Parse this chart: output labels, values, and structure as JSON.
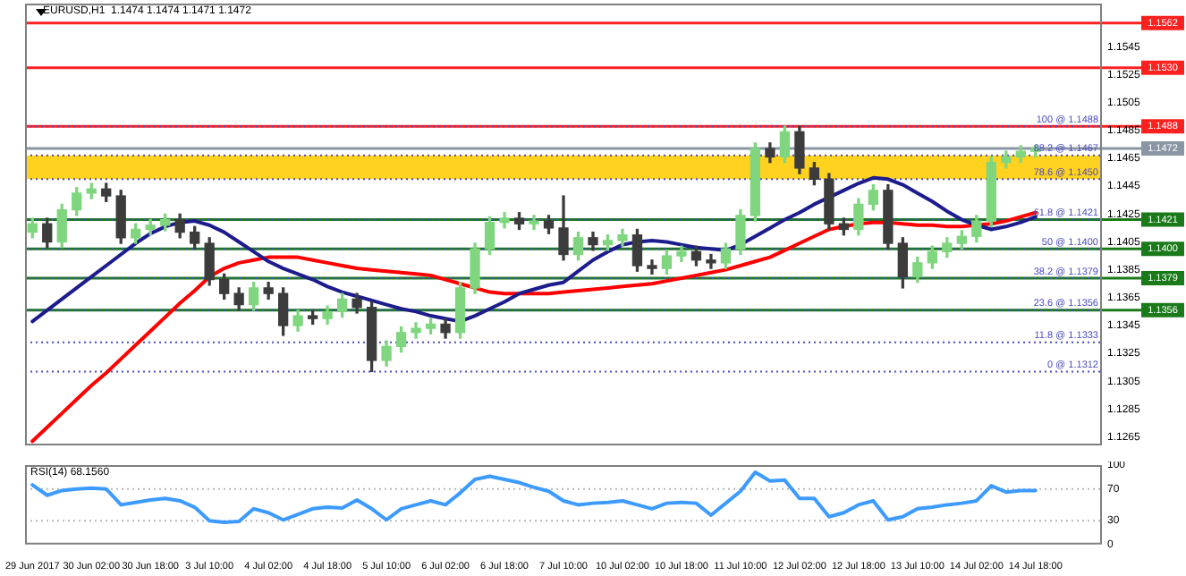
{
  "chart_data": [
    {
      "type": "candlestick",
      "title": "EURUSD,H1  1.1474 1.1474 1.1471 1.1472",
      "categories": [
        null,
        null,
        null,
        null,
        null,
        null,
        null,
        null,
        null,
        null,
        null,
        null,
        null,
        null,
        null,
        null,
        null,
        null,
        null,
        null,
        null,
        null,
        null,
        null,
        null,
        null,
        null,
        null,
        null,
        null,
        null,
        null,
        null,
        null,
        null,
        null,
        null,
        null,
        null,
        null,
        null,
        null,
        null,
        null,
        null,
        null,
        null,
        null,
        null,
        null,
        null,
        null,
        null,
        null,
        null,
        null,
        null,
        null,
        null,
        null,
        null,
        null,
        null,
        null,
        null,
        null,
        null,
        null,
        null
      ],
      "ohlc": [
        [
          1.1412,
          1.1422,
          1.1408,
          1.1418
        ],
        [
          1.1418,
          1.1422,
          1.1401,
          1.1405
        ],
        [
          1.1405,
          1.1432,
          1.1401,
          1.1428
        ],
        [
          1.1428,
          1.1444,
          1.1424,
          1.144
        ],
        [
          1.144,
          1.1447,
          1.1436,
          1.1443
        ],
        [
          1.1443,
          1.1447,
          1.1434,
          1.1438
        ],
        [
          1.1438,
          1.1442,
          1.1404,
          1.1408
        ],
        [
          1.1408,
          1.1418,
          1.1404,
          1.1414
        ],
        [
          1.1414,
          1.1421,
          1.141,
          1.1417
        ],
        [
          1.1417,
          1.1425,
          1.1413,
          1.1421
        ],
        [
          1.1421,
          1.1425,
          1.1408,
          1.1412
        ],
        [
          1.1412,
          1.1416,
          1.14,
          1.1404
        ],
        [
          1.1404,
          1.1408,
          1.1374,
          1.1378
        ],
        [
          1.1378,
          1.1382,
          1.1364,
          1.1368
        ],
        [
          1.1368,
          1.1372,
          1.1356,
          1.136
        ],
        [
          1.136,
          1.1376,
          1.1356,
          1.1372
        ],
        [
          1.1372,
          1.1376,
          1.1364,
          1.1368
        ],
        [
          1.1368,
          1.1372,
          1.1338,
          1.1345
        ],
        [
          1.1345,
          1.1356,
          1.1341,
          1.1352
        ],
        [
          1.1352,
          1.1356,
          1.1346,
          1.135
        ],
        [
          1.135,
          1.1359,
          1.1346,
          1.1355
        ],
        [
          1.1355,
          1.1368,
          1.1351,
          1.1364
        ],
        [
          1.1364,
          1.1368,
          1.1354,
          1.1358
        ],
        [
          1.1358,
          1.1362,
          1.1312,
          1.132
        ],
        [
          1.132,
          1.1334,
          1.1316,
          1.133
        ],
        [
          1.133,
          1.1344,
          1.1326,
          1.134
        ],
        [
          1.134,
          1.1347,
          1.1336,
          1.1343
        ],
        [
          1.1343,
          1.135,
          1.1339,
          1.1346
        ],
        [
          1.1346,
          1.135,
          1.1336,
          1.134
        ],
        [
          1.134,
          1.1376,
          1.1336,
          1.1372
        ],
        [
          1.1372,
          1.1404,
          1.1368,
          1.14
        ],
        [
          1.14,
          1.1423,
          1.1396,
          1.1419
        ],
        [
          1.1419,
          1.1426,
          1.1415,
          1.1422
        ],
        [
          1.1422,
          1.1426,
          1.1414,
          1.1418
        ],
        [
          1.1418,
          1.1424,
          1.1414,
          1.142
        ],
        [
          1.142,
          1.1424,
          1.1411,
          1.1415
        ],
        [
          1.1415,
          1.1438,
          1.1392,
          1.1396
        ],
        [
          1.1396,
          1.1412,
          1.1392,
          1.1408
        ],
        [
          1.1408,
          1.1412,
          1.1399,
          1.1403
        ],
        [
          1.1403,
          1.141,
          1.1399,
          1.1406
        ],
        [
          1.1406,
          1.1414,
          1.1402,
          1.141
        ],
        [
          1.141,
          1.1414,
          1.1384,
          1.1388
        ],
        [
          1.1388,
          1.1392,
          1.1382,
          1.1386
        ],
        [
          1.1386,
          1.1399,
          1.1382,
          1.1395
        ],
        [
          1.1395,
          1.1402,
          1.1391,
          1.1398
        ],
        [
          1.1398,
          1.1402,
          1.1388,
          1.1392
        ],
        [
          1.1392,
          1.1396,
          1.1386,
          1.139
        ],
        [
          1.139,
          1.1404,
          1.1386,
          1.14
        ],
        [
          1.14,
          1.1428,
          1.1396,
          1.1424
        ],
        [
          1.1424,
          1.1476,
          1.142,
          1.1472
        ],
        [
          1.1472,
          1.1476,
          1.1462,
          1.1466
        ],
        [
          1.1466,
          1.1488,
          1.1462,
          1.1484
        ],
        [
          1.1484,
          1.1488,
          1.1454,
          1.1458
        ],
        [
          1.1458,
          1.1462,
          1.1446,
          1.145
        ],
        [
          1.145,
          1.1454,
          1.1414,
          1.1418
        ],
        [
          1.1418,
          1.1422,
          1.141,
          1.1414
        ],
        [
          1.1414,
          1.1436,
          1.141,
          1.1432
        ],
        [
          1.1432,
          1.1446,
          1.1428,
          1.1442
        ],
        [
          1.1442,
          1.1446,
          1.14,
          1.1404
        ],
        [
          1.1404,
          1.1408,
          1.1372,
          1.138
        ],
        [
          1.138,
          1.1394,
          1.1376,
          1.139
        ],
        [
          1.139,
          1.1402,
          1.1386,
          1.1398
        ],
        [
          1.1398,
          1.1408,
          1.1394,
          1.1404
        ],
        [
          1.1404,
          1.1413,
          1.14,
          1.1409
        ],
        [
          1.1409,
          1.1424,
          1.1405,
          1.142
        ],
        [
          1.142,
          1.1466,
          1.1416,
          1.1462
        ],
        [
          1.1462,
          1.147,
          1.1458,
          1.1466
        ],
        [
          1.1466,
          1.1474,
          1.1462,
          1.147
        ],
        [
          1.147,
          1.1474,
          1.1466,
          1.1472
        ]
      ],
      "colors": [
        "#7fd67f",
        "#3c3c3c",
        "#7fd67f",
        "#7fd67f",
        "#7fd67f",
        "#3c3c3c",
        "#3c3c3c",
        "#7fd67f",
        "#7fd67f",
        "#7fd67f",
        "#3c3c3c",
        "#3c3c3c",
        "#3c3c3c",
        "#3c3c3c",
        "#3c3c3c",
        "#7fd67f",
        "#3c3c3c",
        "#3c3c3c",
        "#7fd67f",
        "#3c3c3c",
        "#7fd67f",
        "#7fd67f",
        "#3c3c3c",
        "#3c3c3c",
        "#7fd67f",
        "#7fd67f",
        "#7fd67f",
        "#7fd67f",
        "#3c3c3c",
        "#7fd67f",
        "#7fd67f",
        "#7fd67f",
        "#7fd67f",
        "#3c3c3c",
        "#7fd67f",
        "#3c3c3c",
        "#3c3c3c",
        "#7fd67f",
        "#3c3c3c",
        "#7fd67f",
        "#7fd67f",
        "#3c3c3c",
        "#3c3c3c",
        "#7fd67f",
        "#7fd67f",
        "#3c3c3c",
        "#3c3c3c",
        "#7fd67f",
        "#7fd67f",
        "#7fd67f",
        "#3c3c3c",
        "#7fd67f",
        "#3c3c3c",
        "#3c3c3c",
        "#3c3c3c",
        "#3c3c3c",
        "#7fd67f",
        "#7fd67f",
        "#3c3c3c",
        "#3c3c3c",
        "#7fd67f",
        "#7fd67f",
        "#7fd67f",
        "#7fd67f",
        "#7fd67f",
        "#7fd67f",
        "#7fd67f",
        "#7fd67f",
        "#7fd67f"
      ],
      "series": [
        {
          "type": "line",
          "color": "#1c1c8c",
          "values": [
            1.1348,
            1.1356,
            1.1364,
            1.1372,
            1.138,
            1.1388,
            1.1396,
            1.1404,
            1.1411,
            1.1416,
            1.1419,
            1.142,
            1.1417,
            1.1412,
            1.1405,
            1.1398,
            1.1391,
            1.1386,
            1.1382,
            1.1378,
            1.1373,
            1.1369,
            1.1366,
            1.1363,
            1.136,
            1.1357,
            1.1355,
            1.1352,
            1.135,
            1.1348,
            1.1352,
            1.1357,
            1.1362,
            1.1368,
            1.1371,
            1.1374,
            1.1376,
            1.1384,
            1.1392,
            1.1398,
            1.1403,
            1.1405,
            1.1406,
            1.1405,
            1.1403,
            1.1401,
            1.14,
            1.1399,
            1.1403,
            1.1409,
            1.1415,
            1.1421,
            1.1426,
            1.1432,
            1.1437,
            1.1442,
            1.1447,
            1.1451,
            1.145,
            1.1446,
            1.144,
            1.1434,
            1.1427,
            1.1421,
            1.1417,
            1.1414,
            1.1416,
            1.1419,
            1.1423
          ]
        },
        {
          "type": "line",
          "color": "#ff0000",
          "values": [
            1.1262,
            1.1272,
            1.1282,
            1.1292,
            1.1302,
            1.1311,
            1.1321,
            1.1331,
            1.1341,
            1.1351,
            1.1361,
            1.137,
            1.138,
            1.1386,
            1.139,
            1.1392,
            1.1394,
            1.1394,
            1.1394,
            1.1392,
            1.139,
            1.1388,
            1.1386,
            1.1385,
            1.1384,
            1.1383,
            1.1382,
            1.1381,
            1.1378,
            1.1375,
            1.1372,
            1.1369,
            1.1368,
            1.1368,
            1.1368,
            1.1368,
            1.1369,
            1.137,
            1.1371,
            1.1372,
            1.1373,
            1.1374,
            1.1375,
            1.1377,
            1.1379,
            1.1381,
            1.1383,
            1.1385,
            1.1388,
            1.1391,
            1.1394,
            1.1399,
            1.1404,
            1.1409,
            1.1414,
            1.1416,
            1.1418,
            1.1419,
            1.1419,
            1.1418,
            1.1417,
            1.1417,
            1.1416,
            1.1416,
            1.1417,
            1.1418,
            1.142,
            1.1423,
            1.1426
          ]
        }
      ],
      "ylim": [
        1.1259,
        1.1576
      ],
      "yticks": [
        1.1265,
        1.1285,
        1.1305,
        1.1325,
        1.1345,
        1.1365,
        1.1385,
        1.1405,
        1.1425,
        1.1445,
        1.1465,
        1.1485,
        1.1505,
        1.1525,
        1.1545
      ],
      "bands": [
        {
          "axis": "y",
          "from": 1.145,
          "to": 1.1467,
          "color": "#ffd21f"
        }
      ],
      "ref_lines": [
        {
          "axis": "y",
          "value": 1.1562,
          "label": "1.1562",
          "color": "#ff2020",
          "line_style": "solid"
        },
        {
          "axis": "y",
          "value": 1.153,
          "label": "1.1530",
          "color": "#ff2020",
          "line_style": "solid"
        },
        {
          "axis": "y",
          "value": 1.1488,
          "label": "1.1488",
          "color": "#ff2020",
          "line_style": "solid"
        },
        {
          "axis": "y",
          "value": 1.1472,
          "label": "1.1472",
          "color": "#8a96a3",
          "line_style": "solid"
        },
        {
          "axis": "y",
          "value": 1.1421,
          "label": "1.1421",
          "color": "#1a7a1a",
          "line_style": "solid"
        },
        {
          "axis": "y",
          "value": 1.14,
          "label": "1.1400",
          "color": "#1a7a1a",
          "line_style": "solid"
        },
        {
          "axis": "y",
          "value": 1.1379,
          "label": "1.1379",
          "color": "#1a7a1a",
          "line_style": "solid"
        },
        {
          "axis": "y",
          "value": 1.1356,
          "label": "1.1356",
          "color": "#1a7a1a",
          "line_style": "solid"
        },
        {
          "axis": "y",
          "value": 1.1488,
          "label": "100 @ 1.1488",
          "color": "#4a4ac0",
          "line_style": "dotted"
        },
        {
          "axis": "y",
          "value": 1.1467,
          "label": "88.2 @ 1.1467",
          "color": "#4a4ac0",
          "line_style": "dotted"
        },
        {
          "axis": "y",
          "value": 1.145,
          "label": "78.6 @ 1.1450",
          "color": "#4a4ac0",
          "line_style": "dotted"
        },
        {
          "axis": "y",
          "value": 1.1421,
          "label": "61.8 @ 1.1421",
          "color": "#4a4ac0",
          "line_style": "dotted"
        },
        {
          "axis": "y",
          "value": 1.14,
          "label": "50 @ 1.1400",
          "color": "#4a4ac0",
          "line_style": "dotted"
        },
        {
          "axis": "y",
          "value": 1.1379,
          "label": "38.2 @ 1.1379",
          "color": "#4a4ac0",
          "line_style": "dotted"
        },
        {
          "axis": "y",
          "value": 1.1356,
          "label": "23.6 @ 1.1356",
          "color": "#4a4ac0",
          "line_style": "dotted"
        },
        {
          "axis": "y",
          "value": 1.1333,
          "label": "11.8 @ 1.1333",
          "color": "#4a4ac0",
          "line_style": "dotted"
        },
        {
          "axis": "y",
          "value": 1.1312,
          "label": "0 @ 1.1312",
          "color": "#4a4ac0",
          "line_style": "dotted"
        }
      ],
      "tick_labels": "y"
    },
    {
      "type": "line",
      "title": "RSI(14) 68.1560",
      "categories": [
        "29 Jun 2017",
        null,
        null,
        null,
        "30 Jun 02:00",
        null,
        null,
        null,
        "30 Jun 18:00",
        null,
        null,
        null,
        "3 Jul 10:00",
        null,
        null,
        null,
        "4 Jul 02:00",
        null,
        null,
        null,
        "4 Jul 18:00",
        null,
        null,
        null,
        "5 Jul 10:00",
        null,
        null,
        null,
        "6 Jul 02:00",
        null,
        null,
        null,
        "6 Jul 18:00",
        null,
        null,
        null,
        "7 Jul 10:00",
        null,
        null,
        null,
        "10 Jul 02:00",
        null,
        null,
        null,
        "10 Jul 18:00",
        null,
        null,
        null,
        "11 Jul 10:00",
        null,
        null,
        null,
        "12 Jul 02:00",
        null,
        null,
        null,
        "12 Jul 18:00",
        null,
        null,
        null,
        "13 Jul 10:00",
        null,
        null,
        null,
        "14 Jul 02:00",
        null,
        null,
        null,
        "14 Jul 18:00"
      ],
      "series": [
        {
          "type": "line",
          "color": "#3d9bff",
          "values": [
            75,
            62,
            68,
            70,
            71,
            70,
            50,
            53,
            56,
            58,
            55,
            47,
            30,
            28,
            29,
            45,
            40,
            31,
            38,
            45,
            47,
            46,
            56,
            45,
            31,
            45,
            50,
            55,
            50,
            65,
            82,
            86,
            82,
            78,
            72,
            67,
            55,
            50,
            52,
            53,
            55,
            50,
            45,
            52,
            53,
            52,
            37,
            52,
            67,
            91,
            80,
            81,
            58,
            58,
            35,
            40,
            50,
            55,
            31,
            35,
            45,
            47,
            50,
            52,
            55,
            74,
            66,
            68,
            68
          ]
        }
      ],
      "ylim": [
        0,
        100
      ],
      "yticks": [
        0,
        30,
        70,
        100
      ],
      "ref_lines": [
        {
          "axis": "y",
          "value": 30,
          "color": "#b8b8b8",
          "line_style": "dotted"
        },
        {
          "axis": "y",
          "value": 70,
          "color": "#b8b8b8",
          "line_style": "dotted"
        }
      ]
    }
  ]
}
